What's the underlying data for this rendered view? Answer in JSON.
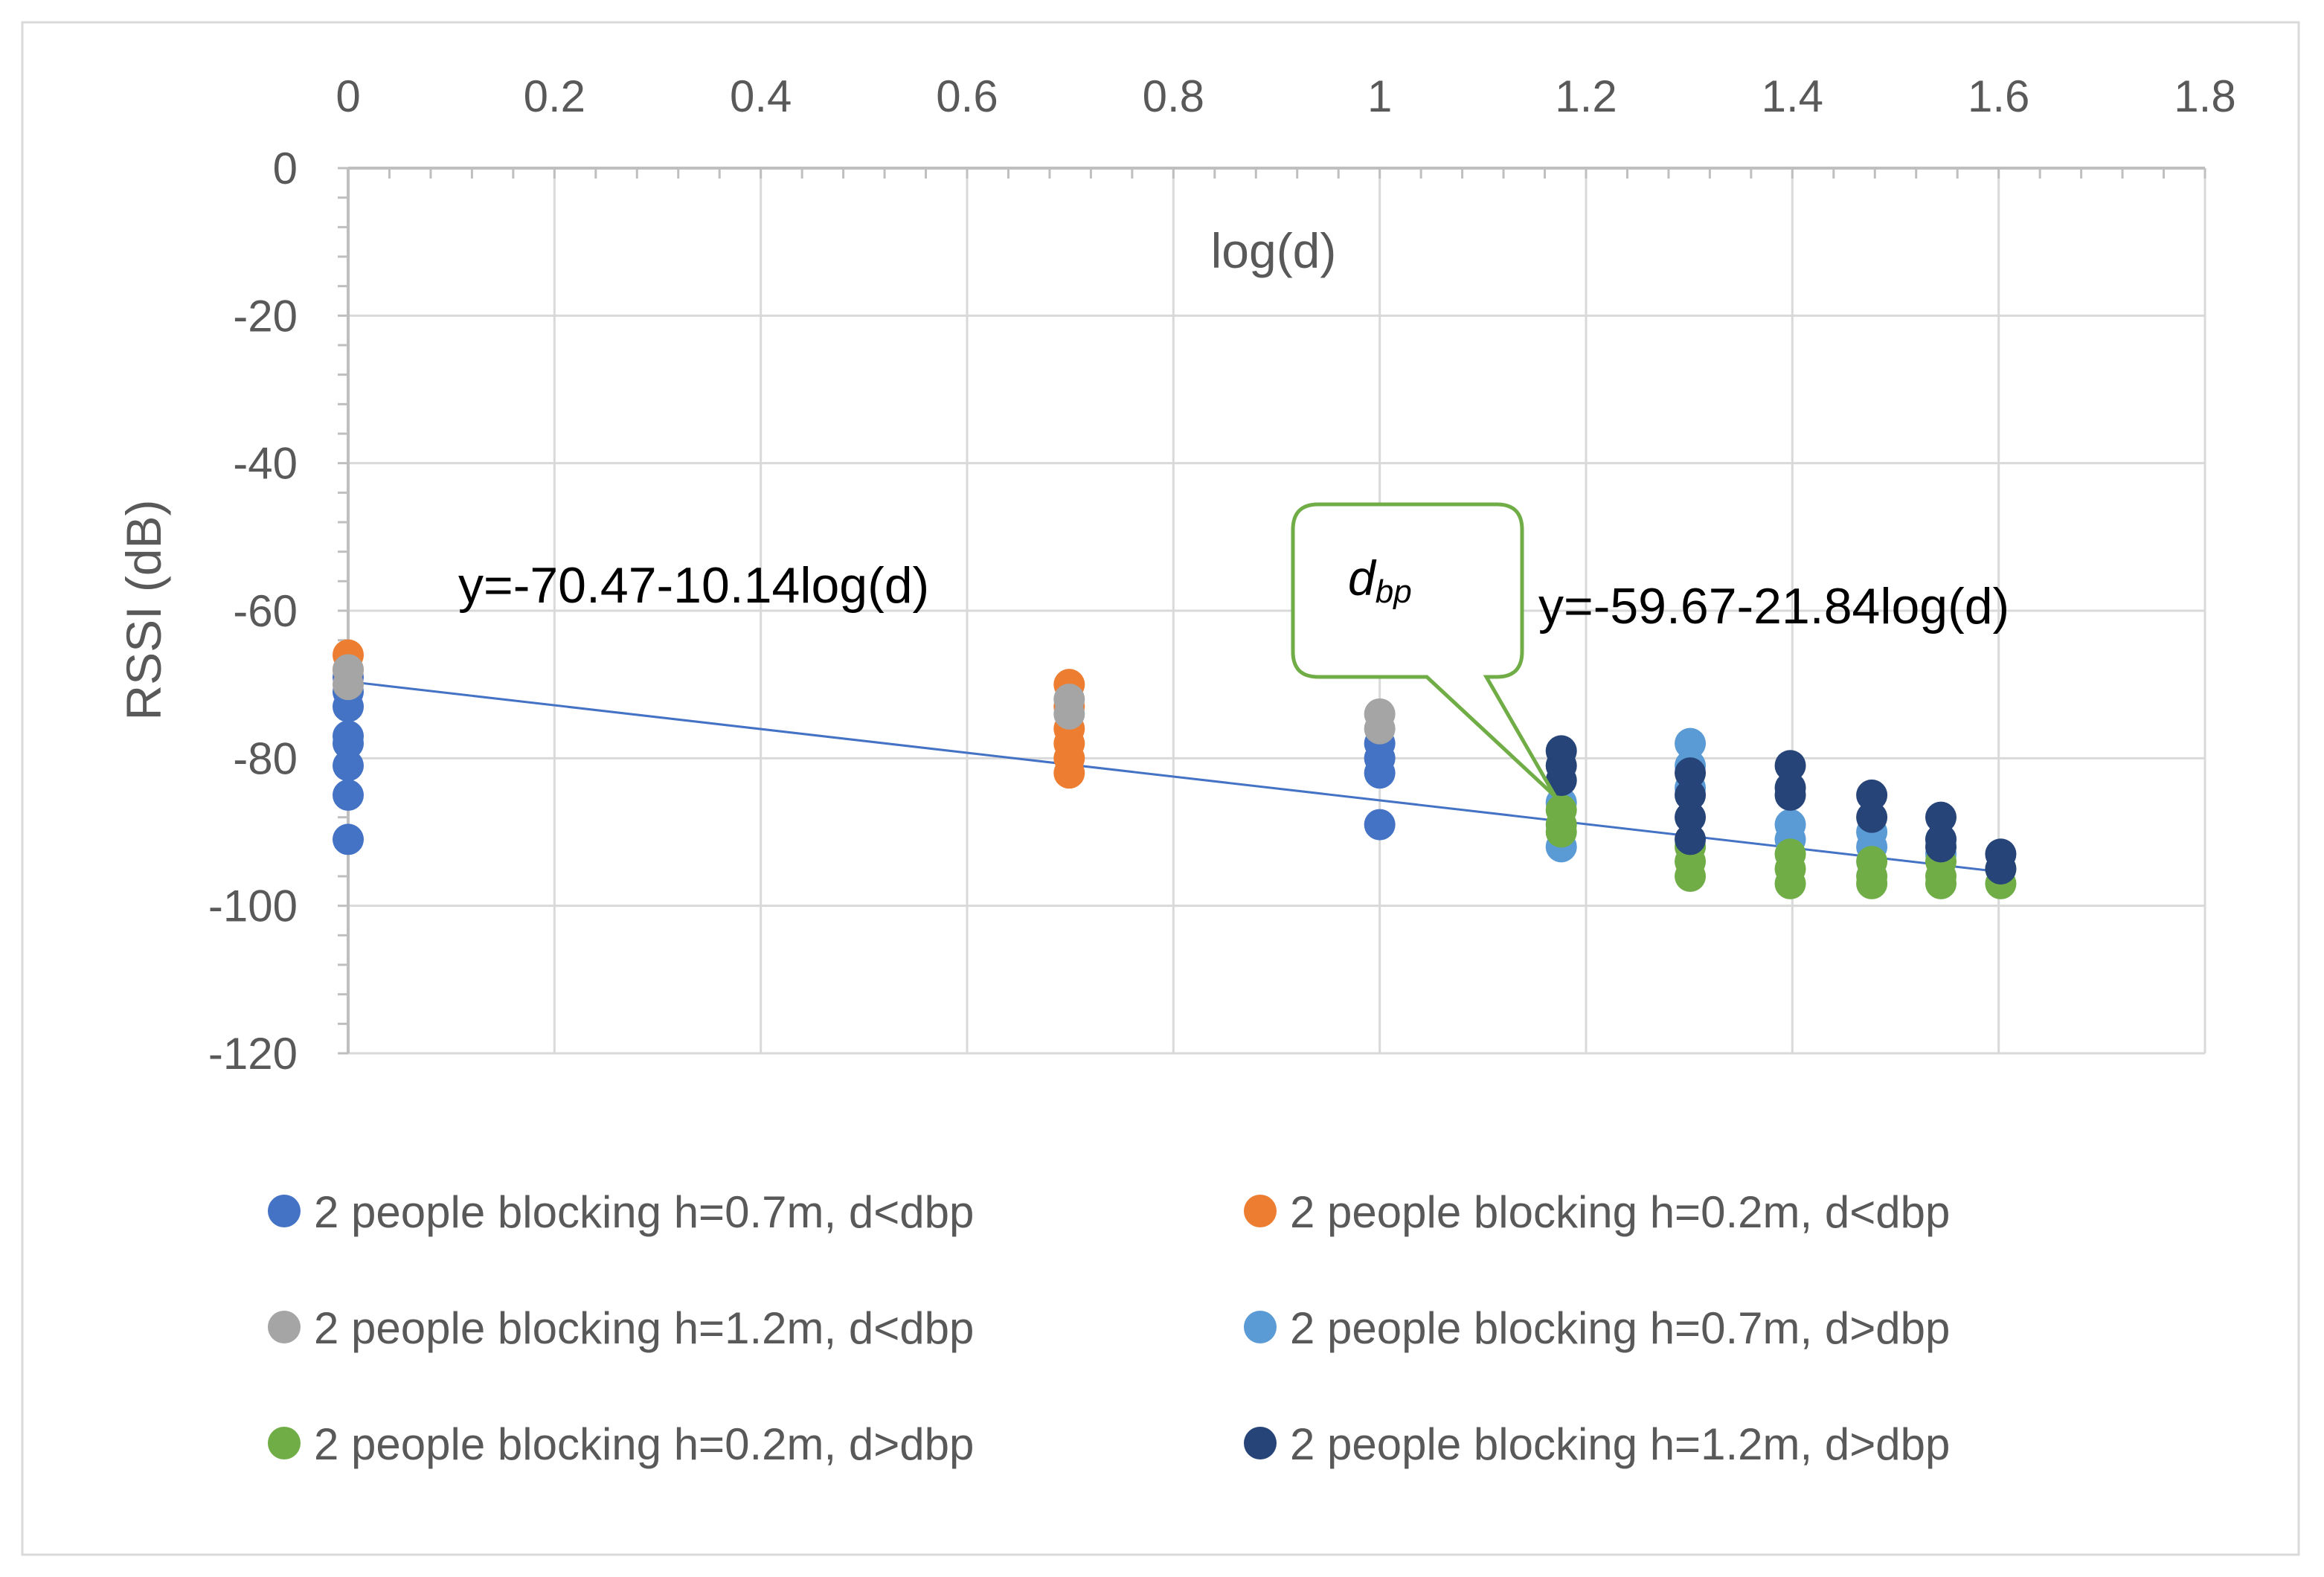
{
  "chart_data": {
    "type": "scatter",
    "title": "",
    "xlabel": "log(d)",
    "ylabel": "RSSI (dB)",
    "xlim": [
      0,
      1.8
    ],
    "ylim": [
      -120,
      0
    ],
    "x_ticks": [
      "0",
      "0.2",
      "0.4",
      "0.6",
      "0.8",
      "1",
      "1.2",
      "1.4",
      "1.6",
      "1.8"
    ],
    "y_ticks": [
      "0",
      "-20",
      "-40",
      "-60",
      "-80",
      "-100",
      "-120"
    ],
    "x_tick_values": [
      0,
      0.2,
      0.4,
      0.6,
      0.8,
      1.0,
      1.2,
      1.4,
      1.6,
      1.8
    ],
    "y_tick_values": [
      0,
      -20,
      -40,
      -60,
      -80,
      -100,
      -120
    ],
    "grid": true,
    "legend_position": "bottom",
    "series": [
      {
        "name": "2 people blocking h=0.7m, d<dbp",
        "color": "#4472C4",
        "points": [
          [
            0,
            -69
          ],
          [
            0,
            -71
          ],
          [
            0,
            -73
          ],
          [
            0,
            -77
          ],
          [
            0,
            -78
          ],
          [
            0,
            -81
          ],
          [
            0,
            -85
          ],
          [
            0,
            -91
          ],
          [
            1.0,
            -78
          ],
          [
            1.0,
            -80
          ],
          [
            1.0,
            -82
          ],
          [
            1.0,
            -89
          ]
        ]
      },
      {
        "name": "2 people blocking h=0.2m, d<dbp",
        "color": "#ED7D31",
        "points": [
          [
            0,
            -66
          ],
          [
            0,
            -68
          ],
          [
            0.699,
            -70
          ],
          [
            0.699,
            -73
          ],
          [
            0.699,
            -76
          ],
          [
            0.699,
            -78
          ],
          [
            0.699,
            -80
          ],
          [
            0.699,
            -82
          ]
        ]
      },
      {
        "name": "2 people blocking h=1.2m, d<dbp",
        "color": "#A5A5A5",
        "points": [
          [
            0,
            -68
          ],
          [
            0,
            -70
          ],
          [
            0.699,
            -72
          ],
          [
            0.699,
            -74
          ],
          [
            1.0,
            -74
          ],
          [
            1.0,
            -76
          ]
        ]
      },
      {
        "name": "2 people blocking h=0.7m, d>dbp",
        "color": "#5B9BD5",
        "points": [
          [
            1.176,
            -86
          ],
          [
            1.176,
            -92
          ],
          [
            1.301,
            -78
          ],
          [
            1.301,
            -81
          ],
          [
            1.301,
            -84
          ],
          [
            1.398,
            -89
          ],
          [
            1.398,
            -91
          ],
          [
            1.477,
            -90
          ],
          [
            1.477,
            -92
          ],
          [
            1.544,
            -91
          ],
          [
            1.544,
            -93
          ]
        ]
      },
      {
        "name": "2 people blocking h=0.2m, d>dbp",
        "color": "#70AD47",
        "points": [
          [
            1.176,
            -87
          ],
          [
            1.176,
            -89
          ],
          [
            1.176,
            -90
          ],
          [
            1.301,
            -92
          ],
          [
            1.301,
            -94
          ],
          [
            1.301,
            -96
          ],
          [
            1.398,
            -93
          ],
          [
            1.398,
            -95
          ],
          [
            1.398,
            -97
          ],
          [
            1.477,
            -94
          ],
          [
            1.477,
            -96
          ],
          [
            1.477,
            -97
          ],
          [
            1.544,
            -94
          ],
          [
            1.544,
            -96
          ],
          [
            1.544,
            -97
          ],
          [
            1.602,
            -95
          ],
          [
            1.602,
            -97
          ]
        ]
      },
      {
        "name": "2 people blocking h=1.2m, d>dbp",
        "color": "#264478",
        "points": [
          [
            1.176,
            -79
          ],
          [
            1.176,
            -81
          ],
          [
            1.176,
            -83
          ],
          [
            1.301,
            -82
          ],
          [
            1.301,
            -85
          ],
          [
            1.301,
            -88
          ],
          [
            1.301,
            -91
          ],
          [
            1.398,
            -81
          ],
          [
            1.398,
            -84
          ],
          [
            1.398,
            -85
          ],
          [
            1.477,
            -85
          ],
          [
            1.477,
            -88
          ],
          [
            1.544,
            -88
          ],
          [
            1.544,
            -91
          ],
          [
            1.544,
            -92
          ],
          [
            1.602,
            -93
          ],
          [
            1.602,
            -95
          ]
        ]
      }
    ],
    "trendline": {
      "color": "#4472C4",
      "from": [
        0,
        -69.6
      ],
      "to": [
        1.602,
        -95.4
      ]
    },
    "annotations": [
      {
        "text": "y=-70.47-10.14log(d)"
      },
      {
        "text": "y=-59.67-21.84log(d)"
      }
    ],
    "callout": {
      "main": "d",
      "subscript": "bp",
      "points_to": [
        1.176,
        -86
      ],
      "border_color": "#70AD47"
    }
  }
}
